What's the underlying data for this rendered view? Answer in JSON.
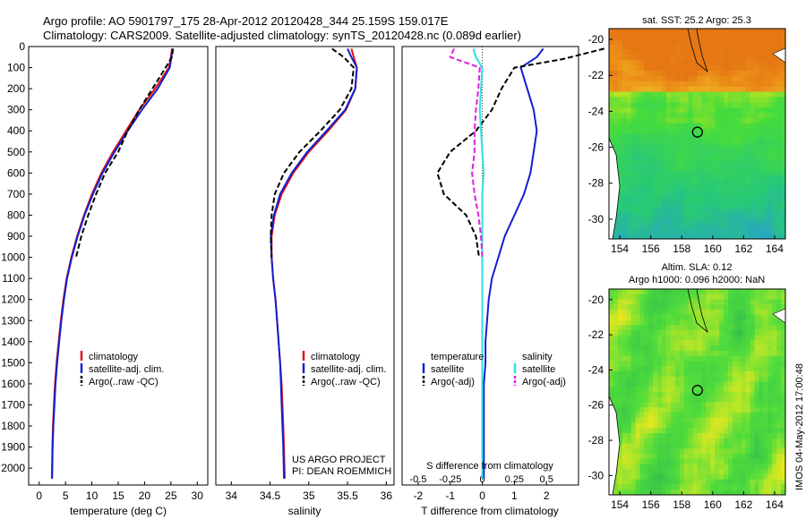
{
  "title_line1": "Argo profile: AO 5901797_175 28-Apr-2012 20120428_344 25.159S 159.017E",
  "title_line2": "Climatology: CARS2009. Satellite-adjusted climatology: synTS_20120428.nc (0.089d earlier)",
  "project_line1": "US ARGO PROJECT",
  "project_line2": "PI: DEAN ROEMMICH",
  "imos_stamp": "IMOS 04-May-2012 17:00:48",
  "sst_map_title": "sat. SST: 25.2 Argo: 25.3",
  "sla_map_title1": "Altim. SLA: 0.12",
  "sla_map_title2": "Argo h1000: 0.096 h2000: NaN",
  "depth_ticks": [
    "0",
    "100",
    "200",
    "300",
    "400",
    "500",
    "600",
    "700",
    "800",
    "900",
    "1000",
    "1100",
    "1200",
    "1300",
    "1400",
    "1500",
    "1600",
    "1700",
    "1800",
    "1900",
    "2000"
  ],
  "colors": {
    "climatology": "#e01010",
    "satellite": "#1020d0",
    "argo": "#000000",
    "salinity_sat": "#30e0e0",
    "salinity_argo": "#e020e0"
  },
  "chart_data": [
    {
      "type": "line",
      "name": "temperature",
      "xlabel": "temperature (deg C)",
      "xticks": [
        "0",
        "5",
        "10",
        "15",
        "20",
        "25",
        "30"
      ],
      "xlim": [
        -2,
        32
      ],
      "ylim": [
        2080,
        0
      ],
      "legend": [
        "climatology",
        "satellite-adj. clim.",
        "Argo(..raw -QC)"
      ],
      "series": [
        {
          "name": "climatology",
          "color": "#e01010",
          "x": [
            25.2,
            25.0,
            24.6,
            22.0,
            19.0,
            16.5,
            14.0,
            11.8,
            10.0,
            8.5,
            7.2,
            6.1,
            5.2,
            4.6,
            4.1,
            3.7,
            3.3,
            3.0,
            2.8,
            2.6,
            2.5,
            2.4
          ],
          "y": [
            10,
            50,
            100,
            200,
            300,
            400,
            500,
            600,
            700,
            800,
            900,
            1000,
            1100,
            1200,
            1300,
            1400,
            1500,
            1600,
            1700,
            1800,
            1900,
            2050
          ]
        },
        {
          "name": "satellite-adj. clim.",
          "color": "#1020d0",
          "x": [
            25.3,
            25.1,
            24.8,
            22.5,
            19.5,
            16.8,
            14.3,
            12.0,
            10.2,
            8.6,
            7.3,
            6.2,
            5.3,
            4.7,
            4.2,
            3.8,
            3.4,
            3.1,
            2.9,
            2.7,
            2.55,
            2.45
          ],
          "y": [
            10,
            50,
            100,
            200,
            300,
            400,
            500,
            600,
            700,
            800,
            900,
            1000,
            1100,
            1200,
            1300,
            1400,
            1500,
            1600,
            1700,
            1800,
            1900,
            2050
          ]
        },
        {
          "name": "Argo(..raw -QC)",
          "color": "#000000",
          "x": [
            25.4,
            25.2,
            24.0,
            21.5,
            19.0,
            16.8,
            15.0,
            12.5,
            10.8,
            9.3,
            8.0,
            7.0
          ],
          "y": [
            10,
            50,
            100,
            200,
            300,
            400,
            500,
            600,
            700,
            800,
            900,
            1000
          ]
        }
      ]
    },
    {
      "type": "line",
      "name": "salinity",
      "xlabel": "salinity",
      "xticks": [
        "34",
        "34.5",
        "35",
        "35.5",
        "36"
      ],
      "xlim": [
        33.8,
        36.1
      ],
      "ylim": [
        2080,
        0
      ],
      "legend": [
        "climatology",
        "satellite-adj. clim.",
        "Argo(..raw -QC)"
      ],
      "series": [
        {
          "name": "climatology",
          "color": "#e01010",
          "x": [
            35.55,
            35.58,
            35.62,
            35.6,
            35.48,
            35.25,
            35.0,
            34.8,
            34.65,
            34.56,
            34.52,
            34.52,
            34.54,
            34.57,
            34.59,
            34.61,
            34.63,
            34.65,
            34.66,
            34.67,
            34.68,
            34.69
          ],
          "y": [
            10,
            50,
            100,
            200,
            300,
            400,
            500,
            600,
            700,
            800,
            900,
            1000,
            1100,
            1200,
            1300,
            1400,
            1500,
            1600,
            1700,
            1800,
            1900,
            2050
          ]
        },
        {
          "name": "satellite-adj. clim.",
          "color": "#1020d0",
          "x": [
            35.5,
            35.55,
            35.62,
            35.6,
            35.47,
            35.23,
            34.98,
            34.78,
            34.63,
            34.55,
            34.51,
            34.52,
            34.54,
            34.57,
            34.59,
            34.61,
            34.63,
            34.64,
            34.65,
            34.66,
            34.67,
            34.68
          ],
          "y": [
            10,
            50,
            100,
            200,
            300,
            400,
            500,
            600,
            700,
            800,
            900,
            1000,
            1100,
            1200,
            1300,
            1400,
            1500,
            1600,
            1700,
            1800,
            1900,
            2050
          ]
        },
        {
          "name": "Argo(..raw -QC)",
          "color": "#000000",
          "x": [
            35.3,
            35.45,
            35.58,
            35.55,
            35.4,
            35.15,
            34.88,
            34.68,
            34.56,
            34.52,
            34.51,
            34.52
          ],
          "y": [
            10,
            50,
            100,
            200,
            300,
            400,
            500,
            600,
            700,
            800,
            900,
            1000
          ]
        }
      ]
    },
    {
      "type": "line",
      "name": "differences",
      "xlabel": "T difference from climatology",
      "xlabel_top": "S difference from climatology",
      "xticks": [
        "-2",
        "-1",
        "0",
        "1",
        "2"
      ],
      "xticks_s": [
        "-0.5",
        "-0.25",
        "0",
        "0.25",
        "0.5"
      ],
      "xlim": [
        -2.5,
        3.0
      ],
      "ylim": [
        2080,
        0
      ],
      "legend_headers": [
        "temperature",
        "salinity"
      ],
      "legend": [
        "satellite",
        "Argo(-adj)",
        "satellite",
        "Argo(-adj)"
      ],
      "series": [
        {
          "name": "T satellite",
          "color": "#1020d0",
          "x": [
            1.9,
            1.7,
            1.2,
            1.4,
            1.6,
            1.7,
            1.6,
            1.5,
            1.3,
            1.0,
            0.7,
            0.5,
            0.3,
            0.2,
            0.15,
            0.1,
            0.1,
            0.05,
            0.05,
            0.05,
            0.05
          ],
          "y": [
            10,
            50,
            100,
            200,
            300,
            400,
            500,
            600,
            700,
            800,
            900,
            1000,
            1100,
            1200,
            1300,
            1400,
            1500,
            1600,
            1700,
            1800,
            2050
          ]
        },
        {
          "name": "T Argo(-adj)",
          "color": "#000000",
          "x": [
            3.8,
            2.5,
            1.0,
            0.6,
            0.3,
            -0.2,
            -1.0,
            -1.4,
            -1.2,
            -0.5,
            -0.2,
            -0.1
          ],
          "y": [
            10,
            60,
            100,
            200,
            300,
            400,
            500,
            600,
            700,
            800,
            900,
            1000
          ]
        },
        {
          "name": "S satellite",
          "color": "#30e0e0",
          "x": [
            -0.07,
            -0.05,
            0.0,
            -0.01,
            -0.02,
            -0.01,
            0.0,
            0.01,
            0.0,
            0.0,
            0.0,
            0.0,
            0.0,
            0.0,
            0.0,
            0.0,
            0.0,
            0.0,
            0.0,
            0.0
          ],
          "y": [
            10,
            50,
            100,
            200,
            300,
            400,
            500,
            600,
            700,
            800,
            900,
            1000,
            1100,
            1200,
            1300,
            1400,
            1500,
            1600,
            1700,
            2050
          ]
        },
        {
          "name": "S Argo(-adj)",
          "color": "#e020e0",
          "x": [
            -0.22,
            -0.25,
            -0.02,
            -0.03,
            -0.05,
            -0.06,
            -0.06,
            -0.08,
            -0.06,
            -0.03,
            -0.01,
            0.0
          ],
          "y": [
            10,
            50,
            100,
            200,
            300,
            400,
            500,
            600,
            700,
            800,
            900,
            1000
          ]
        }
      ]
    },
    {
      "type": "heatmap",
      "name": "sst_map",
      "title": "sat. SST: 25.2 Argo: 25.3",
      "xticks": [
        "154",
        "156",
        "158",
        "160",
        "162",
        "164"
      ],
      "yticks": [
        "-20",
        "-22",
        "-24",
        "-26",
        "-28",
        "-30"
      ],
      "xlim": [
        153.3,
        164.7
      ],
      "ylim": [
        -31.1,
        -19.4
      ],
      "marker": {
        "lon": 159.017,
        "lat": -25.159
      }
    },
    {
      "type": "heatmap",
      "name": "sla_map",
      "title": "Altim. SLA: 0.12",
      "subtitle": "Argo h1000: 0.096 h2000: NaN",
      "xticks": [
        "154",
        "156",
        "158",
        "160",
        "162",
        "164"
      ],
      "yticks": [
        "-20",
        "-22",
        "-24",
        "-26",
        "-28",
        "-30"
      ],
      "xlim": [
        153.3,
        164.7
      ],
      "ylim": [
        -31.1,
        -19.4
      ],
      "marker": {
        "lon": 159.017,
        "lat": -25.159
      }
    }
  ]
}
